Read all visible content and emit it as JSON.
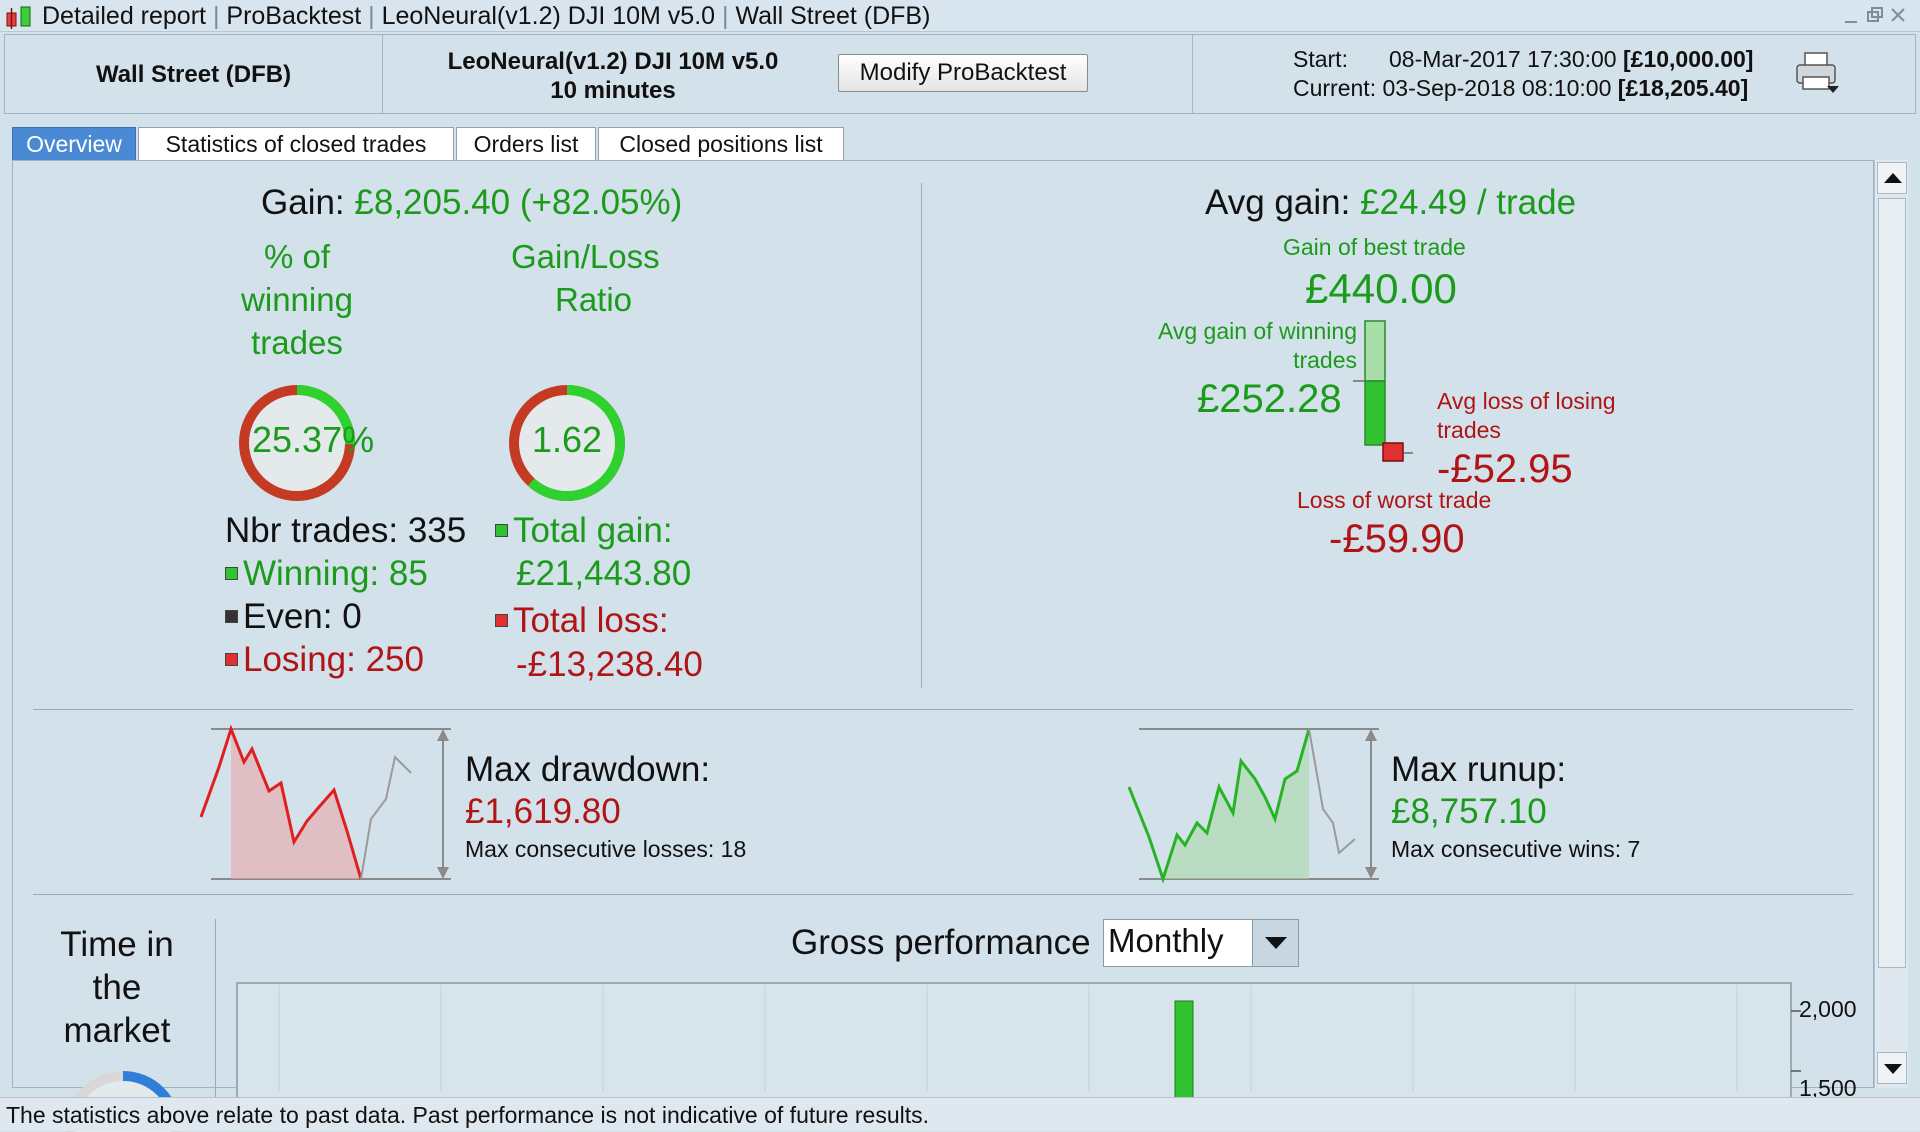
{
  "window": {
    "title_parts": [
      "Detailed report",
      "ProBacktest",
      "LeoNeural(v1.2) DJI 10M v5.0",
      "Wall Street (DFB)"
    ]
  },
  "header": {
    "instrument": "Wall Street (DFB)",
    "system_name": "LeoNeural(v1.2) DJI 10M v5.0",
    "timeframe": "10 minutes",
    "modify_button": "Modify ProBacktest",
    "start_label": "Start:",
    "start_date": "08-Mar-2017 17:30:00",
    "start_capital": "[£10,000.00]",
    "current_label": "Current:",
    "current_date": "03-Sep-2018 08:10:00",
    "current_capital": "[£18,205.40]"
  },
  "tabs": [
    {
      "label": "Overview",
      "active": true
    },
    {
      "label": "Statistics of closed trades",
      "active": false
    },
    {
      "label": "Orders list",
      "active": false
    },
    {
      "label": "Closed positions list",
      "active": false
    }
  ],
  "overview": {
    "gain_label": "Gain:",
    "gain_value": "£8,205.40 (+82.05%)",
    "pct_winning_title_1": "% of",
    "pct_winning_title_2": "winning",
    "pct_winning_title_3": "trades",
    "pct_winning_value": "25.37%",
    "pct_winning_fraction": 0.2537,
    "gl_ratio_title_1": "Gain/Loss",
    "gl_ratio_title_2": "Ratio",
    "gl_ratio_value": "1.62",
    "gl_ratio_fraction": 0.618,
    "nbr_trades": "Nbr trades: 335",
    "winning": "Winning: 85",
    "even": "Even: 0",
    "losing": "Losing: 250",
    "total_gain_label": "Total gain:",
    "total_gain_value": "£21,443.80",
    "total_loss_label": "Total loss:",
    "total_loss_value": "-£13,238.40",
    "avg_gain_label": "Avg gain:",
    "avg_gain_value": "£24.49 / trade",
    "best_trade_label": "Gain of best trade",
    "best_trade_value": "£440.00",
    "avg_win_label_1": "Avg gain of winning",
    "avg_win_label_2": "trades",
    "avg_win_value": "£252.28",
    "avg_loss_label_1": "Avg loss of losing",
    "avg_loss_label_2": "trades",
    "avg_loss_value": "-£52.95",
    "worst_trade_label": "Loss of worst trade",
    "worst_trade_value": "-£59.90",
    "max_drawdown_label": "Max drawdown:",
    "max_drawdown_value": "£1,619.80",
    "max_consec_losses": "Max consecutive losses: 18",
    "max_runup_label": "Max runup:",
    "max_runup_value": "£8,757.10",
    "max_consec_wins": "Max consecutive wins: 7",
    "time_in_market_1": "Time in",
    "time_in_market_2": "the",
    "time_in_market_3": "market",
    "gross_perf_label": "Gross performance",
    "gross_perf_period": "Monthly",
    "gross_perf_ticks": [
      "2,000",
      "1,500"
    ]
  },
  "status_bar": "The statistics above relate to past data. Past performance is not indicative of future results.",
  "colors": {
    "gain_green": "#1c9a1c",
    "loss_red": "#b01414",
    "active_tab": "#4a89d4",
    "background": "#d3e1ea"
  }
}
